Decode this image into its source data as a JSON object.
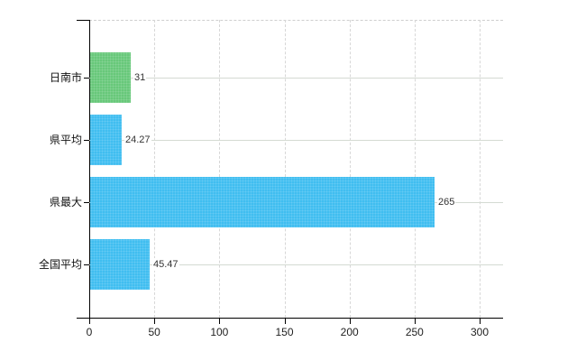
{
  "chart_data": {
    "type": "bar",
    "orientation": "horizontal",
    "categories": [
      "日南市",
      "県平均",
      "県最大",
      "全国平均"
    ],
    "values": [
      31,
      24.27,
      265,
      45.47
    ],
    "value_labels": [
      "31",
      "24.27",
      "265",
      "45.47"
    ],
    "bar_colors": [
      "#68c87a",
      "#40bef0",
      "#40bef0",
      "#40bef0"
    ],
    "x_ticks": [
      "0",
      "50",
      "100",
      "150",
      "200",
      "250",
      "300"
    ],
    "x_tick_values": [
      0,
      50,
      100,
      150,
      200,
      250,
      300
    ],
    "xlim": [
      0,
      318
    ],
    "grid": true,
    "legend_position": "none",
    "title": "",
    "colors": {
      "axis": "#000000",
      "vertical_grid": "#d7d7d7",
      "horizontal_grid": "#d4dad2",
      "top_border": "#cfcfcf",
      "text": "#111111",
      "value_text": "#333333",
      "background": "#ffffff"
    }
  }
}
